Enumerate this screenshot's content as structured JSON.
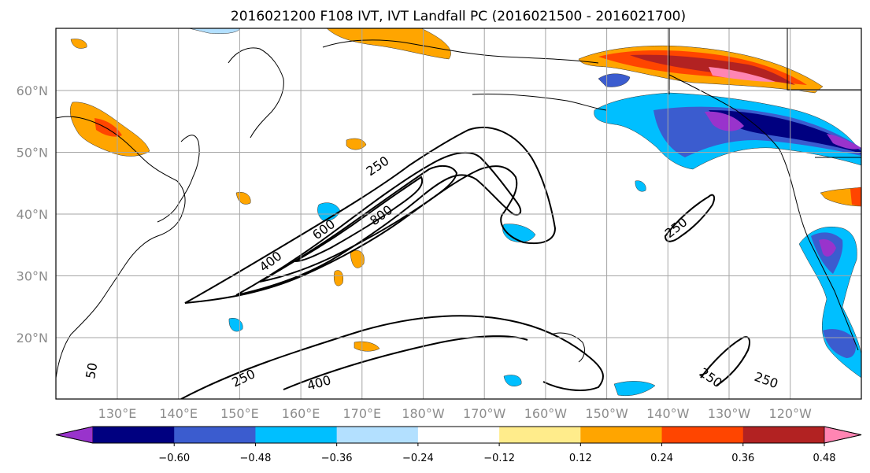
{
  "title": "2016021200 F108 IVT, IVT Landfall PC (2016021500 - 2016021700)",
  "map": {
    "lon_labels": [
      "130°E",
      "140°E",
      "150°E",
      "160°E",
      "170°E",
      "180°W",
      "170°W",
      "160°W",
      "150°W",
      "140°W",
      "130°W",
      "120°W"
    ],
    "lat_labels": [
      "60°N",
      "50°N",
      "40°N",
      "30°N",
      "20°N"
    ],
    "gridlines": true,
    "coastlines": true,
    "contour_levels": [
      250,
      400,
      600,
      800
    ],
    "contour_labels": [
      "250",
      "400",
      "600",
      "800",
      "250",
      "400",
      "250",
      "250",
      "250",
      "50"
    ],
    "contour_color": "#000000"
  },
  "colorbar": {
    "extend": "both",
    "colors": [
      "#9933cc",
      "#000080",
      "#3b5ccf",
      "#00bfff",
      "#b3e0ff",
      "#ffffff",
      "#ffec8b",
      "#ffa500",
      "#ff4500",
      "#b22222",
      "#ff85b3"
    ],
    "tick_labels": [
      "−0.60",
      "−0.48",
      "−0.36",
      "−0.24",
      "−0.12",
      "0.12",
      "0.24",
      "0.36",
      "0.48",
      "0.60"
    ]
  }
}
